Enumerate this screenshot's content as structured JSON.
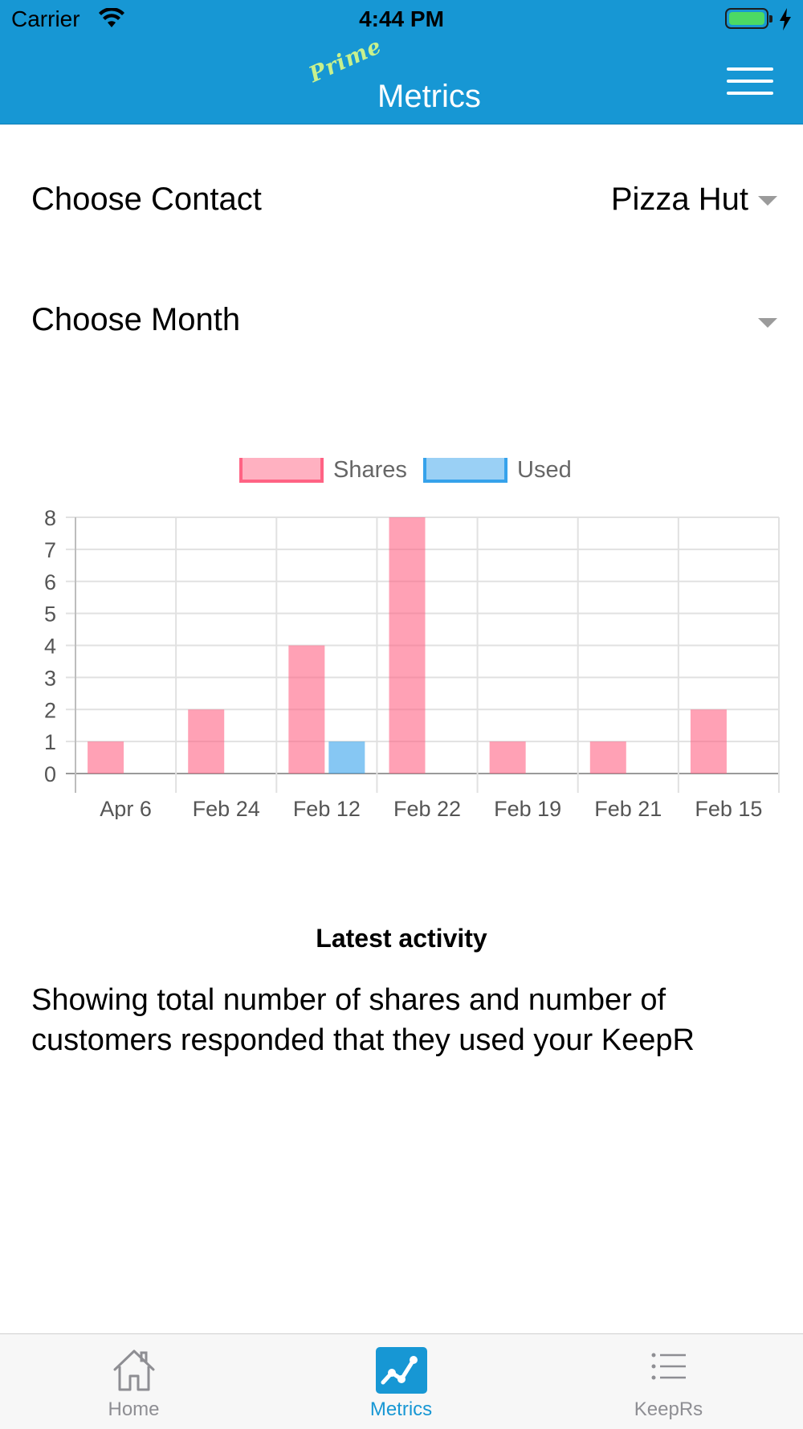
{
  "status_bar": {
    "carrier": "Carrier",
    "time": "4:44 PM"
  },
  "nav": {
    "brand_badge": "Prime",
    "title": "Metrics"
  },
  "filters": {
    "contact": {
      "label": "Choose Contact",
      "value": "Pizza Hut"
    },
    "month": {
      "label": "Choose Month",
      "value": ""
    }
  },
  "chart_data": {
    "type": "bar",
    "categories": [
      "Apr 6",
      "Feb 24",
      "Feb 12",
      "Feb 22",
      "Feb 19",
      "Feb 21",
      "Feb 15"
    ],
    "series": [
      {
        "name": "Shares",
        "values": [
          1,
          2,
          4,
          8,
          1,
          1,
          2
        ],
        "color": "#ff6384"
      },
      {
        "name": "Used",
        "values": [
          0,
          0,
          1,
          0,
          0,
          0,
          0
        ],
        "color": "#36a2eb"
      }
    ],
    "ylim": [
      0,
      8
    ],
    "yticks": [
      "0",
      "1",
      "2",
      "3",
      "4",
      "5",
      "6",
      "7",
      "8"
    ],
    "legend": "top",
    "grid": true
  },
  "activity": {
    "heading": "Latest activity",
    "body": "Showing total number of shares and number of customers responded that they used your KeepR"
  },
  "tabs": [
    {
      "label": "Home",
      "icon": "home-icon",
      "active": false
    },
    {
      "label": "Metrics",
      "icon": "metrics-chart-icon",
      "active": true
    },
    {
      "label": "KeepRs",
      "icon": "list-icon",
      "active": false
    }
  ],
  "colors": {
    "brand": "#1797d4",
    "badge": "#c8f18d",
    "inactive_tab": "#8e8e93"
  }
}
